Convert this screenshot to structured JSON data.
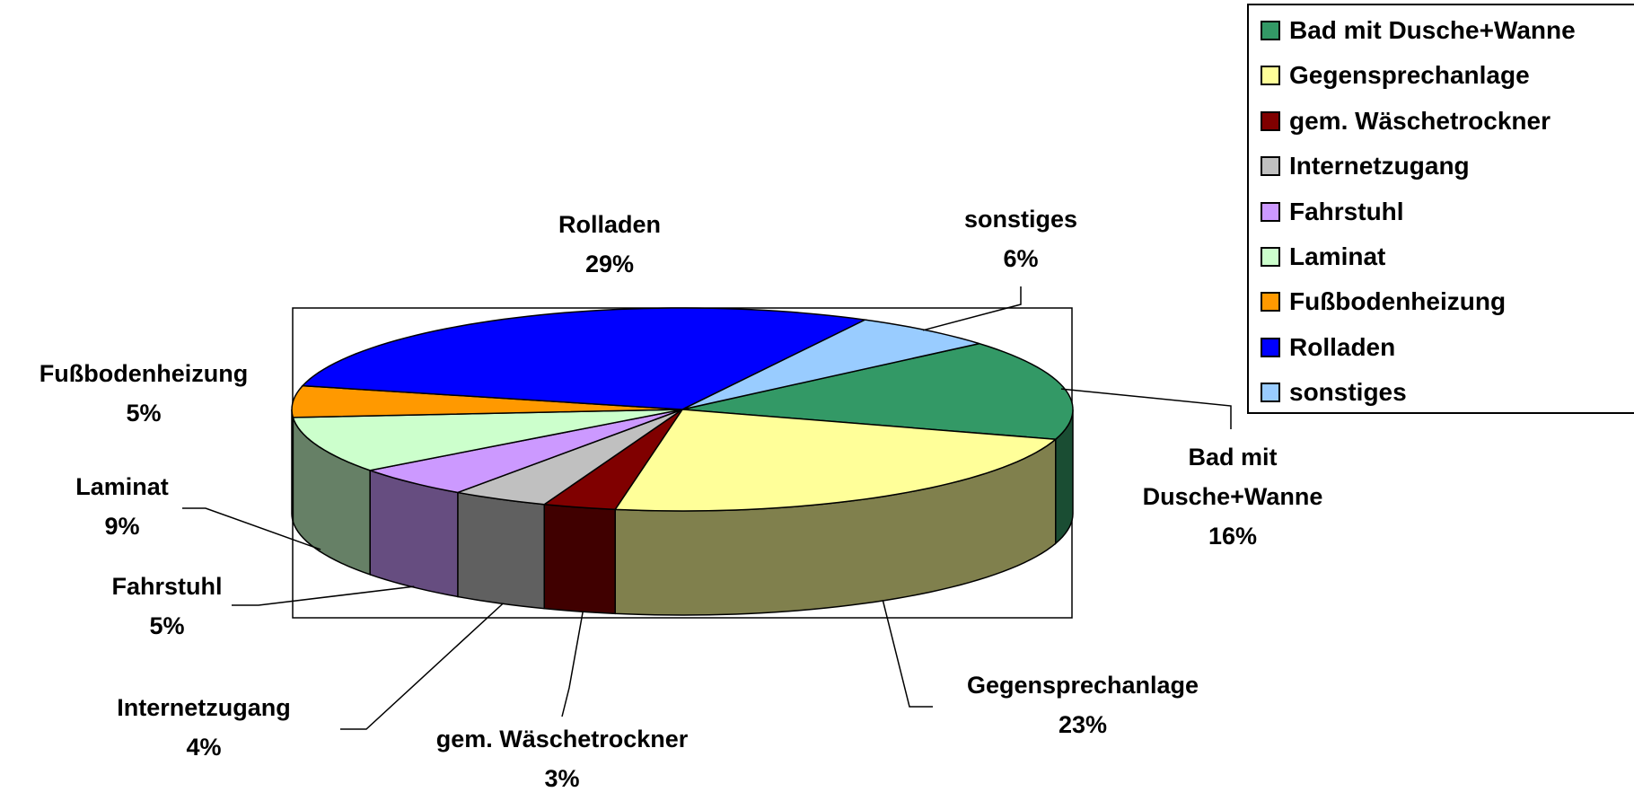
{
  "chart_data": {
    "type": "pie3d",
    "categories": [
      "Bad mit Dusche+Wanne",
      "Gegensprechanlage",
      "gem. Wäschetrockner",
      "Internetzugang",
      "Fahrstuhl",
      "Laminat",
      "Fußbodenheizung",
      "Rolladen",
      "sonstiges"
    ],
    "values": [
      16,
      23,
      3,
      4,
      5,
      9,
      5,
      29,
      6
    ],
    "value_labels": [
      "16%",
      "23%",
      "3%",
      "4%",
      "5%",
      "9%",
      "5%",
      "29%",
      "6%"
    ],
    "colors": [
      "#339966",
      "#FFFF99",
      "#800000",
      "#C0C0C0",
      "#CC99FF",
      "#CCFFCC",
      "#FF9900",
      "#0000FF",
      "#99CCFF"
    ],
    "legend": "top-right"
  }
}
